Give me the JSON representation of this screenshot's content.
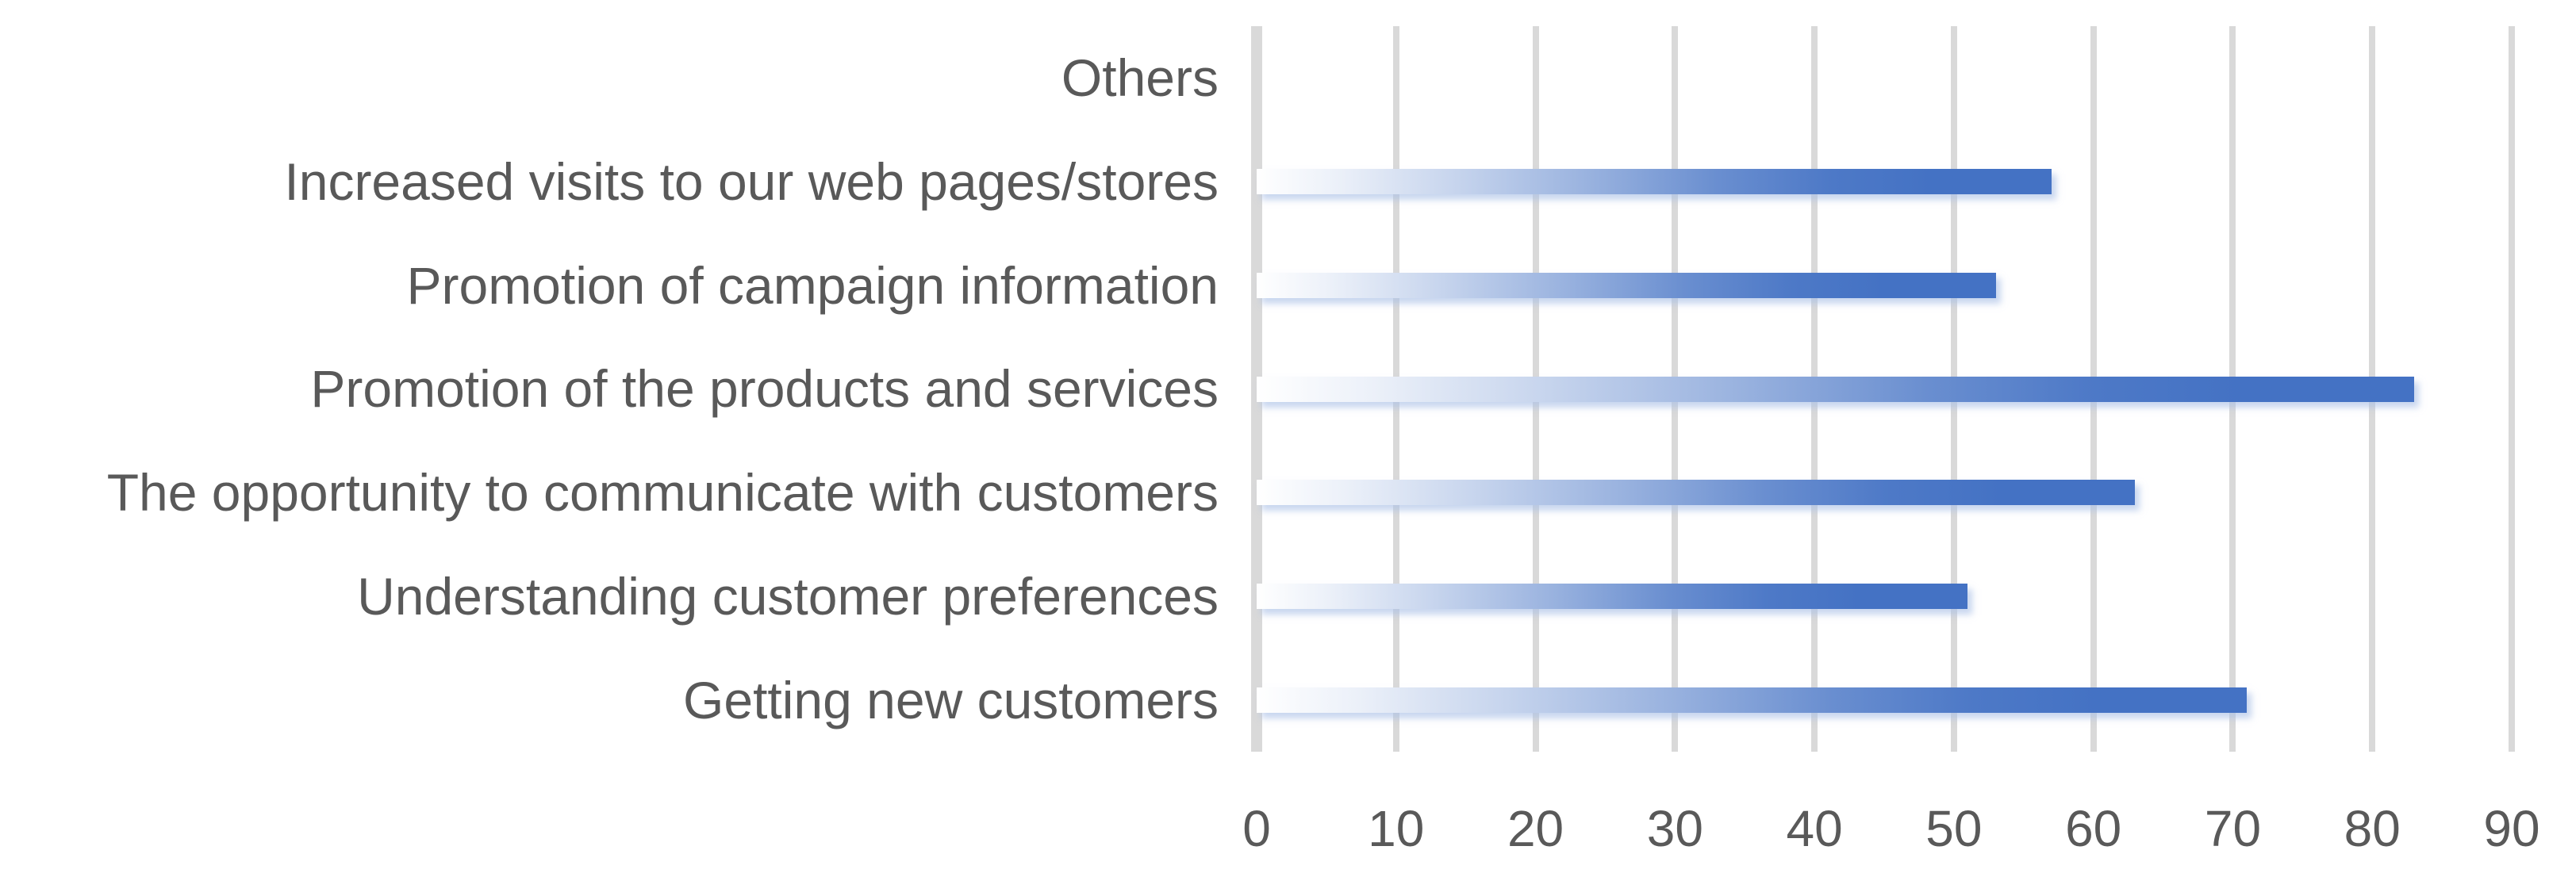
{
  "chart_data": {
    "type": "bar",
    "orientation": "horizontal",
    "title": "",
    "xlabel": "",
    "ylabel": "",
    "categories": [
      "Others",
      "Increased visits to our web pages/stores",
      "Promotion of campaign information",
      "Promotion of the products and services",
      "The opportunity to communicate with customers",
      "Understanding customer preferences",
      "Getting new customers"
    ],
    "values": [
      0,
      57,
      53,
      83,
      63,
      51,
      71
    ],
    "xlim": [
      0,
      90
    ],
    "x_ticks": [
      0,
      10,
      20,
      30,
      40,
      50,
      60,
      70,
      80,
      90
    ],
    "grid": "vertical-gridlines-on",
    "legend": "none",
    "bar_fill": "gradient-white-to-blue-left-to-right"
  },
  "colors": {
    "bar_accent": "#4472c4",
    "gridline": "#d9d9d9",
    "axis_text": "#595959",
    "background": "#ffffff"
  }
}
